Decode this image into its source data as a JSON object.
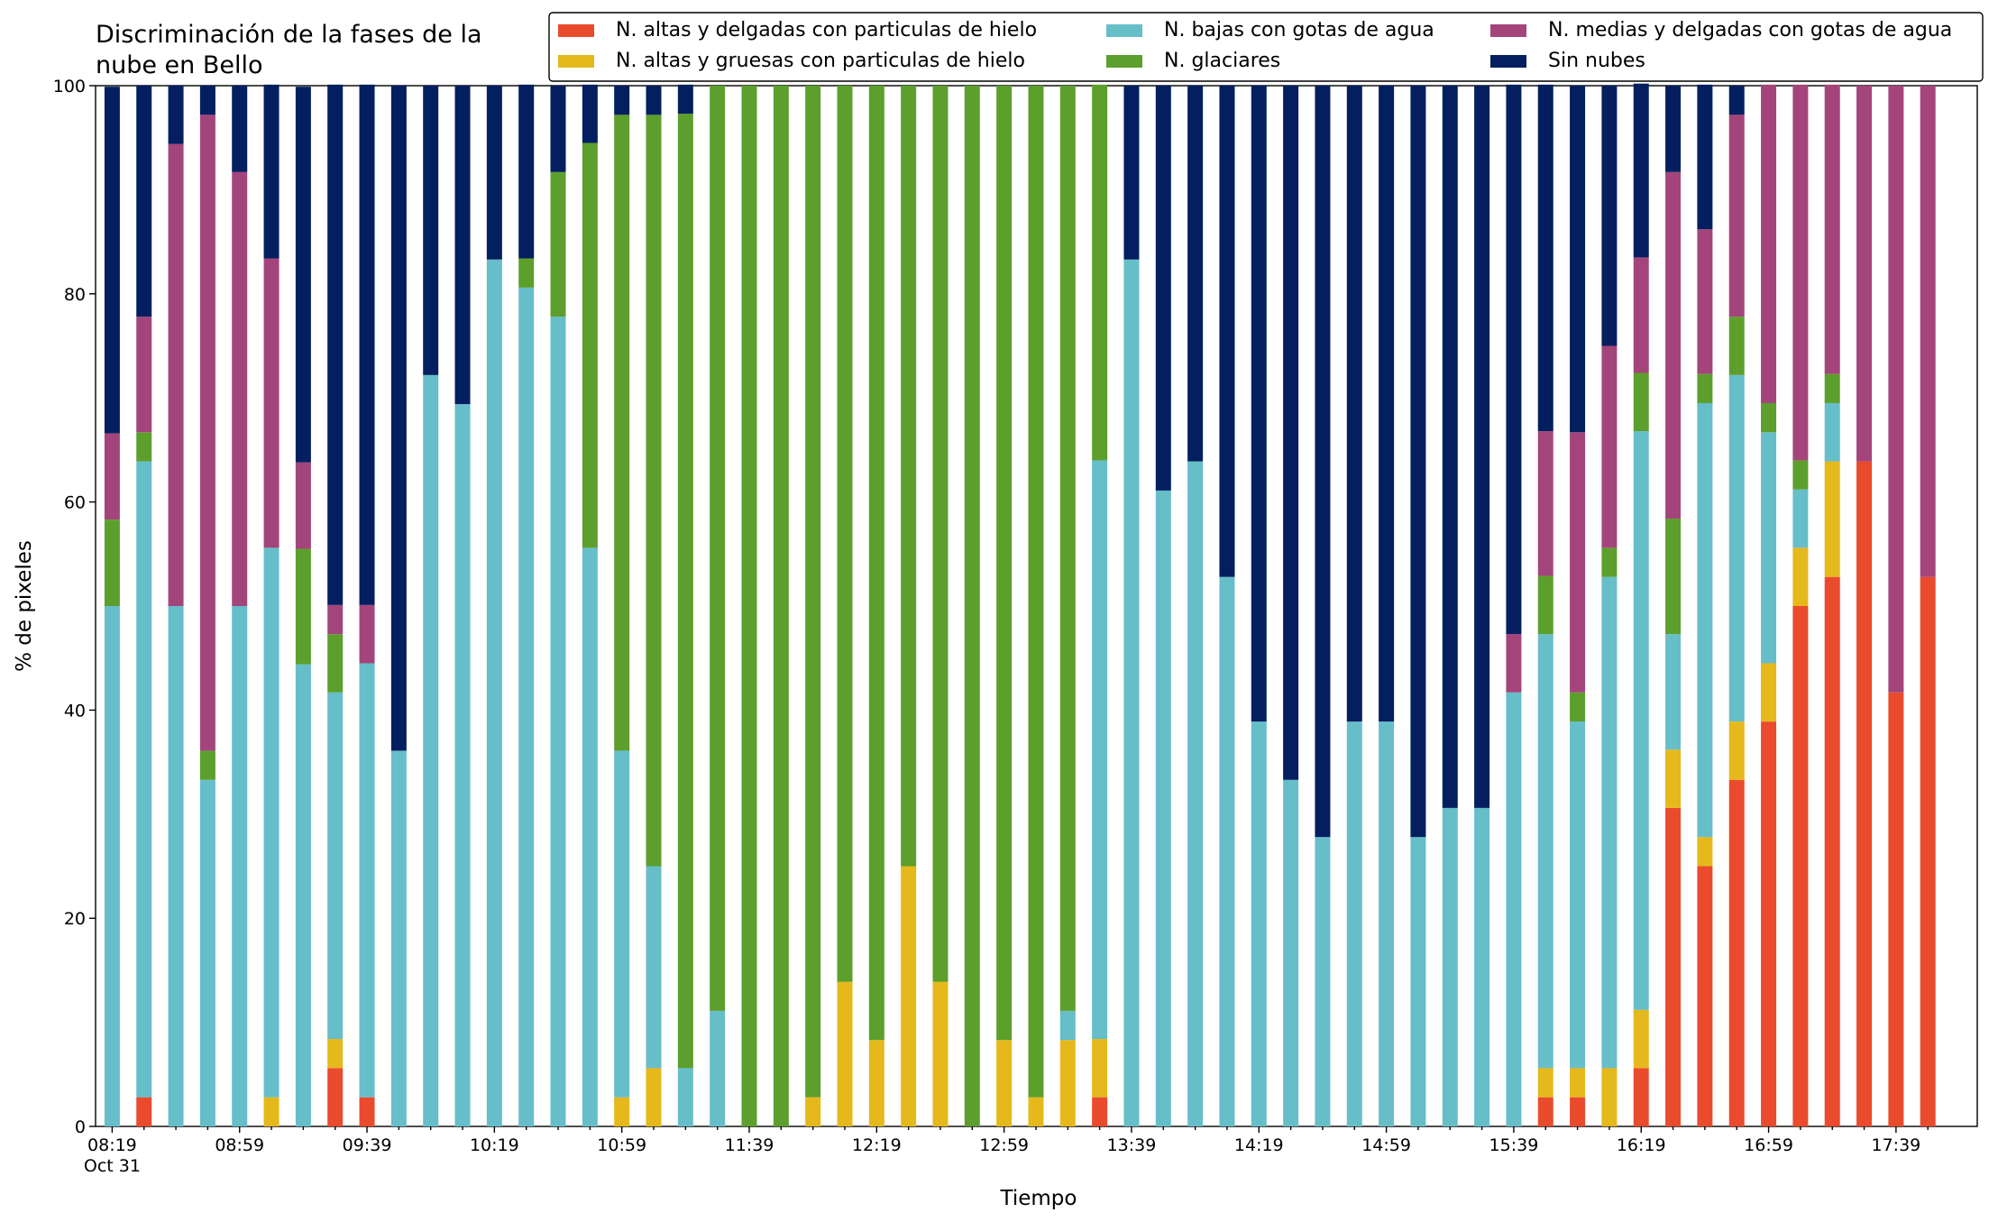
{
  "chart_data": {
    "type": "stacked_bar",
    "title": "Discriminación de la fases de la nube en Bello",
    "xlabel": "Tiempo",
    "ylabel": "% de pixeles",
    "date_label": "Oct 31",
    "categories": [
      "08:19",
      null,
      null,
      null,
      "08:59",
      null,
      null,
      null,
      "09:39",
      null,
      null,
      null,
      "10:19",
      null,
      null,
      null,
      "10:59",
      null,
      null,
      null,
      "11:39",
      null,
      null,
      null,
      "12:19",
      null,
      null,
      null,
      "12:59",
      null,
      null,
      null,
      "13:39",
      null,
      null,
      null,
      "14:19",
      null,
      null,
      null,
      "14:59",
      null,
      null,
      null,
      "15:39",
      null,
      null,
      null,
      "16:19",
      null,
      null,
      null,
      "16:59",
      null,
      null,
      null,
      "17:39",
      null
    ],
    "ylim": [
      0,
      100
    ],
    "yticks": [
      0,
      20,
      40,
      60,
      80,
      100
    ],
    "grid": false,
    "legend": "top",
    "series": [
      {
        "name": "N. altas y delgadas con particulas de hielo",
        "color": "#ea4b2d",
        "values": [
          0,
          2.8,
          0,
          0,
          0,
          0,
          0,
          5.6,
          2.8,
          0,
          0,
          0,
          0,
          0,
          0,
          0,
          0,
          0,
          0,
          0,
          0,
          0,
          0,
          0,
          0,
          0,
          0,
          0,
          0,
          0,
          0,
          2.8,
          0,
          0,
          0,
          0,
          0,
          0,
          0,
          0,
          0,
          0,
          0,
          0,
          0,
          2.8,
          2.8,
          0,
          5.6,
          30.6,
          25,
          33.3,
          38.9,
          50,
          52.8,
          63.9,
          41.7,
          52.8
        ]
      },
      {
        "name": "N. altas y gruesas con particulas de hielo",
        "color": "#e5b81c",
        "values": [
          0,
          0,
          0,
          0,
          0,
          2.8,
          0,
          2.8,
          0,
          0,
          0,
          0,
          0,
          0,
          0,
          0,
          2.8,
          5.6,
          0,
          0,
          0,
          0,
          2.8,
          13.9,
          8.3,
          25,
          13.9,
          0,
          8.3,
          2.8,
          8.3,
          5.6,
          0,
          0,
          0,
          0,
          0,
          0,
          0,
          0,
          0,
          0,
          0,
          0,
          0,
          2.8,
          2.8,
          5.6,
          5.6,
          5.6,
          2.8,
          5.6,
          5.6,
          5.6,
          11.1,
          0,
          0,
          0
        ]
      },
      {
        "name": "N. bajas con gotas de agua",
        "color": "#66bec9",
        "values": [
          50,
          61.1,
          50,
          33.3,
          50,
          52.8,
          44.4,
          33.3,
          41.7,
          36.1,
          72.2,
          69.4,
          83.3,
          80.6,
          77.8,
          55.6,
          33.3,
          19.4,
          5.6,
          11.1,
          0,
          0,
          0,
          0,
          0,
          0,
          0,
          0,
          0,
          0,
          2.8,
          55.6,
          83.3,
          61.1,
          63.9,
          52.8,
          38.9,
          33.3,
          27.8,
          38.9,
          38.9,
          27.8,
          30.6,
          30.6,
          41.7,
          41.7,
          33.3,
          47.2,
          55.6,
          11.1,
          41.7,
          33.3,
          22.2,
          5.6,
          5.6,
          0,
          0,
          0
        ]
      },
      {
        "name": "N. glaciares",
        "color": "#5c9f2c",
        "values": [
          8.3,
          2.8,
          0,
          2.8,
          0,
          0,
          11.1,
          5.6,
          0,
          0,
          0,
          0,
          0,
          2.8,
          13.9,
          38.9,
          61.1,
          72.2,
          91.7,
          88.9,
          100,
          100,
          97.2,
          86.1,
          91.7,
          75,
          86.1,
          100,
          91.7,
          97.2,
          88.9,
          36.1,
          0,
          0,
          0,
          0,
          0,
          0,
          0,
          0,
          0,
          0,
          0,
          0,
          0,
          5.6,
          2.8,
          2.8,
          5.6,
          11.1,
          2.8,
          5.6,
          2.8,
          2.8,
          2.8,
          0,
          0,
          0
        ]
      },
      {
        "name": "N. medias y delgadas con gotas de agua",
        "color": "#a3457b",
        "values": [
          8.3,
          11.1,
          44.4,
          61.1,
          41.7,
          27.8,
          8.3,
          2.8,
          5.6,
          0,
          0,
          0,
          0,
          0,
          0,
          0,
          0,
          0,
          0,
          0,
          0,
          0,
          0,
          0,
          0,
          0,
          0,
          0,
          0,
          0,
          0,
          0,
          0,
          0,
          0,
          0,
          0,
          0,
          0,
          0,
          0,
          0,
          0,
          0,
          5.6,
          13.9,
          25,
          19.4,
          11.1,
          33.3,
          13.9,
          19.4,
          30.6,
          36.1,
          27.8,
          36.1,
          58.3,
          47.2
        ]
      },
      {
        "name": "Sin nubes",
        "color": "#031f5f",
        "values": [
          33.3,
          22.2,
          5.6,
          2.8,
          8.3,
          16.7,
          36.1,
          50,
          50,
          63.9,
          27.8,
          30.6,
          16.7,
          16.7,
          8.3,
          5.6,
          2.8,
          2.8,
          2.8,
          0,
          0,
          0,
          0,
          0,
          0,
          0,
          0,
          0,
          0,
          0,
          0,
          0,
          16.7,
          38.9,
          36.1,
          47.2,
          61.1,
          66.7,
          72.2,
          61.1,
          61.1,
          72.2,
          69.4,
          69.4,
          52.8,
          33.3,
          33.3,
          25,
          16.7,
          8.3,
          13.9,
          2.8,
          0,
          0,
          0,
          0,
          0,
          0
        ]
      }
    ]
  }
}
